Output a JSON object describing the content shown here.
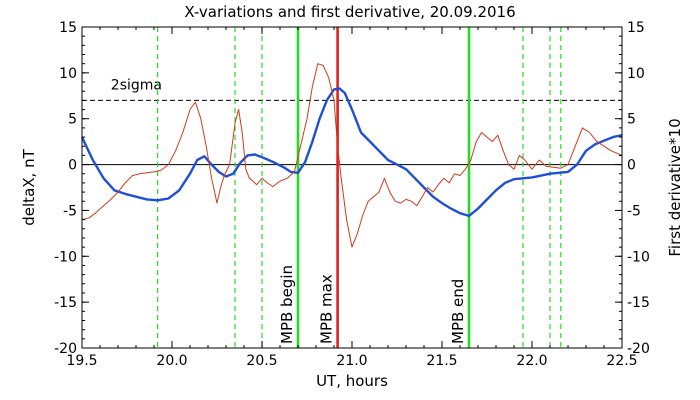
{
  "chart_data": {
    "type": "line",
    "title": "X-variations and first derivative, 20.09.2016",
    "xlabel": "UT, hours",
    "ylabel_left": "deltaX, nT",
    "ylabel_right": "First derivative*10",
    "xlim": [
      19.5,
      22.5
    ],
    "ylim_left": [
      -20,
      15
    ],
    "ylim_right": [
      -20,
      15
    ],
    "x_ticks": [
      19.5,
      20.0,
      20.5,
      21.0,
      21.5,
      22.0,
      22.5
    ],
    "x_tick_labels": [
      "19.5",
      "20.0",
      "20.5",
      "21.0",
      "21.5",
      "22.0",
      "22.5"
    ],
    "y_ticks": [
      -20,
      -15,
      -10,
      -5,
      0,
      5,
      10,
      15
    ],
    "y_tick_labels": [
      "-20",
      "-15",
      "-10",
      "-5",
      "0",
      "5",
      "10",
      "15"
    ],
    "grid": false,
    "colors": {
      "deltaX": "#1f4fd6",
      "derivative": "#d23a1c",
      "mpb_marker": "#22dd22",
      "max_marker": "#dd2222",
      "threshold": "#000000"
    },
    "threshold": {
      "label": "2sigma",
      "value": 7
    },
    "zero_line": 0,
    "dashed_markers_x": [
      19.92,
      20.35,
      20.5,
      21.95,
      22.1,
      22.16
    ],
    "vertical_markers": [
      {
        "x": 20.7,
        "label": "MPB begin",
        "color": "#22dd22"
      },
      {
        "x": 20.92,
        "label": "MPB max",
        "color": "#dd2222"
      },
      {
        "x": 21.65,
        "label": "MPB end",
        "color": "#22dd22"
      }
    ],
    "series": [
      {
        "name": "deltaX, nT",
        "axis": "left",
        "color": "#1f4fd6",
        "x": [
          19.5,
          19.56,
          19.62,
          19.68,
          19.74,
          19.8,
          19.86,
          19.92,
          19.98,
          20.04,
          20.1,
          20.14,
          20.18,
          20.22,
          20.26,
          20.3,
          20.34,
          20.38,
          20.42,
          20.46,
          20.5,
          20.56,
          20.62,
          20.66,
          20.7,
          20.74,
          20.78,
          20.82,
          20.86,
          20.9,
          20.93,
          20.96,
          21.0,
          21.05,
          21.1,
          21.15,
          21.2,
          21.25,
          21.3,
          21.35,
          21.4,
          21.45,
          21.5,
          21.55,
          21.6,
          21.65,
          21.7,
          21.75,
          21.8,
          21.85,
          21.9,
          21.95,
          22.0,
          22.05,
          22.1,
          22.15,
          22.2,
          22.25,
          22.3,
          22.35,
          22.4,
          22.45,
          22.5
        ],
        "y": [
          3,
          0.5,
          -1.5,
          -2.8,
          -3.2,
          -3.5,
          -3.8,
          -3.9,
          -3.7,
          -2.8,
          -1.0,
          0.5,
          0.9,
          0.0,
          -0.8,
          -1.3,
          -1.0,
          0.2,
          1.0,
          1.1,
          0.8,
          0.3,
          -0.3,
          -0.8,
          -0.9,
          0.3,
          2.5,
          5.0,
          7.0,
          8.2,
          8.3,
          7.8,
          6.0,
          3.5,
          2.5,
          1.5,
          0.5,
          0.0,
          -0.5,
          -1.5,
          -2.5,
          -3.5,
          -4.2,
          -4.8,
          -5.3,
          -5.6,
          -4.8,
          -3.8,
          -2.8,
          -2.0,
          -1.6,
          -1.5,
          -1.4,
          -1.2,
          -1.0,
          -0.9,
          -0.8,
          0.0,
          1.5,
          2.2,
          2.6,
          3.0,
          3.2
        ]
      },
      {
        "name": "First derivative*10",
        "axis": "right",
        "color": "#d23a1c",
        "x": [
          19.5,
          19.54,
          19.58,
          19.62,
          19.66,
          19.7,
          19.74,
          19.78,
          19.82,
          19.86,
          19.9,
          19.94,
          19.98,
          20.02,
          20.06,
          20.1,
          20.13,
          20.16,
          20.19,
          20.22,
          20.25,
          20.27,
          20.29,
          20.32,
          20.35,
          20.37,
          20.39,
          20.41,
          20.43,
          20.45,
          20.47,
          20.5,
          20.53,
          20.56,
          20.6,
          20.64,
          20.68,
          20.72,
          20.75,
          20.78,
          20.81,
          20.84,
          20.87,
          20.9,
          20.92,
          20.94,
          20.97,
          21.0,
          21.03,
          21.06,
          21.09,
          21.12,
          21.15,
          21.18,
          21.21,
          21.24,
          21.27,
          21.3,
          21.33,
          21.36,
          21.39,
          21.42,
          21.45,
          21.48,
          21.51,
          21.54,
          21.57,
          21.6,
          21.63,
          21.66,
          21.69,
          21.72,
          21.75,
          21.78,
          21.81,
          21.84,
          21.87,
          21.9,
          21.93,
          21.96,
          22.0,
          22.04,
          22.08,
          22.12,
          22.16,
          22.2,
          22.24,
          22.28,
          22.32,
          22.36,
          22.4,
          22.44,
          22.5
        ],
        "y": [
          -6,
          -5.8,
          -5.2,
          -4.5,
          -3.8,
          -3.0,
          -2.0,
          -1.2,
          -1.0,
          -0.9,
          -0.8,
          -0.6,
          0.0,
          1.5,
          3.5,
          6.0,
          6.8,
          5.0,
          2.0,
          -1.5,
          -4.2,
          -2.5,
          -1.2,
          0.0,
          4.5,
          6.0,
          3.5,
          -0.5,
          -1.5,
          -1.8,
          -2.2,
          -1.5,
          -2.0,
          -2.4,
          -1.8,
          -1.5,
          -0.8,
          2.5,
          5.0,
          8.5,
          11.0,
          10.8,
          9.5,
          7.0,
          2.0,
          -1.5,
          -6.0,
          -9.0,
          -7.5,
          -5.5,
          -4.0,
          -3.5,
          -3.0,
          -1.5,
          -3.0,
          -4.0,
          -4.2,
          -3.8,
          -4.0,
          -4.5,
          -3.5,
          -2.5,
          -3.0,
          -2.2,
          -1.5,
          -2.0,
          -1.0,
          -1.2,
          -0.5,
          0.5,
          2.5,
          3.5,
          3.0,
          2.5,
          3.2,
          1.5,
          0.0,
          -0.5,
          1.0,
          0.5,
          -0.5,
          0.5,
          -0.2,
          -0.3,
          -0.4,
          0.0,
          2.0,
          4.0,
          3.5,
          2.5,
          2.0,
          1.5,
          1.0
        ]
      }
    ]
  }
}
